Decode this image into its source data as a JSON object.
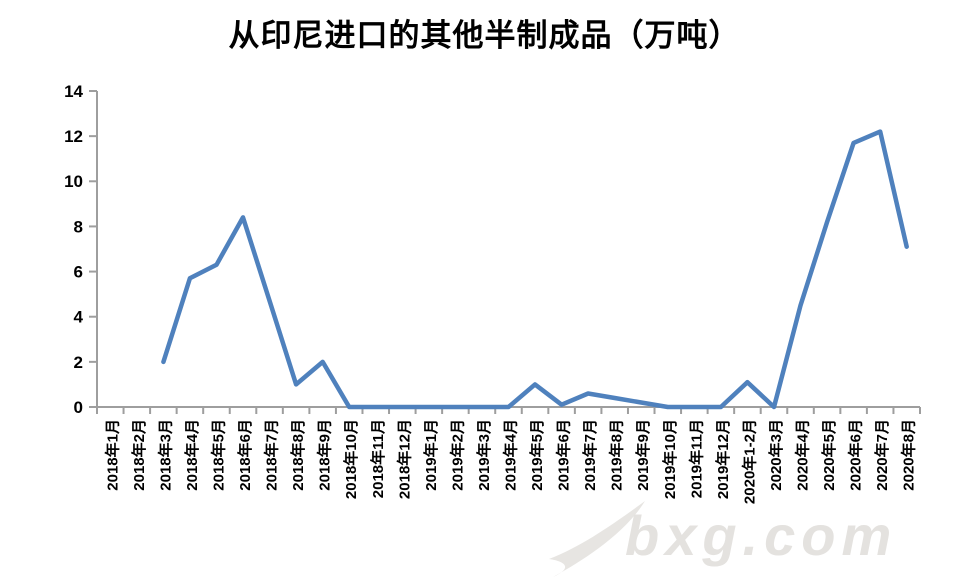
{
  "title": "从印尼进口的其他半制成品（万吨）",
  "watermark": {
    "text": "bxg.com"
  },
  "chart_data": {
    "type": "line",
    "title": "从印尼进口的其他半制成品（万吨）",
    "xlabel": "",
    "ylabel": "",
    "categories": [
      "2018年1月",
      "2018年2月",
      "2018年3月",
      "2018年4月",
      "2018年5月",
      "2018年6月",
      "2018年7月",
      "2018年8月",
      "2018年9月",
      "2018年10月",
      "2018年11月",
      "2018年12月",
      "2019年1月",
      "2019年2月",
      "2019年3月",
      "2019年4月",
      "2019年5月",
      "2019年6月",
      "2019年7月",
      "2019年8月",
      "2019年9月",
      "2019年10月",
      "2019年11月",
      "2019年12月",
      "2020年1-2月",
      "2020年3月",
      "2020年4月",
      "2020年5月",
      "2020年6月",
      "2020年7月",
      "2020年8月"
    ],
    "series": [
      {
        "name": "从印尼进口的其他半制成品",
        "values": [
          null,
          null,
          2,
          5.7,
          6.3,
          8.4,
          4.7,
          1,
          2,
          0,
          0,
          0,
          0,
          0,
          0,
          0,
          1,
          0.1,
          0.6,
          0.4,
          0.2,
          0,
          0,
          0,
          1.1,
          0,
          4.5,
          8.2,
          11.7,
          12.2,
          7.1
        ]
      }
    ],
    "ylim": [
      0,
      14
    ],
    "yticks": [
      0,
      2,
      4,
      6,
      8,
      10,
      12,
      14
    ],
    "grid": false,
    "legend": "none",
    "line_color": "#4f81bd",
    "axis_color": "#9e9e9e",
    "tick_label_color": "#000000"
  }
}
